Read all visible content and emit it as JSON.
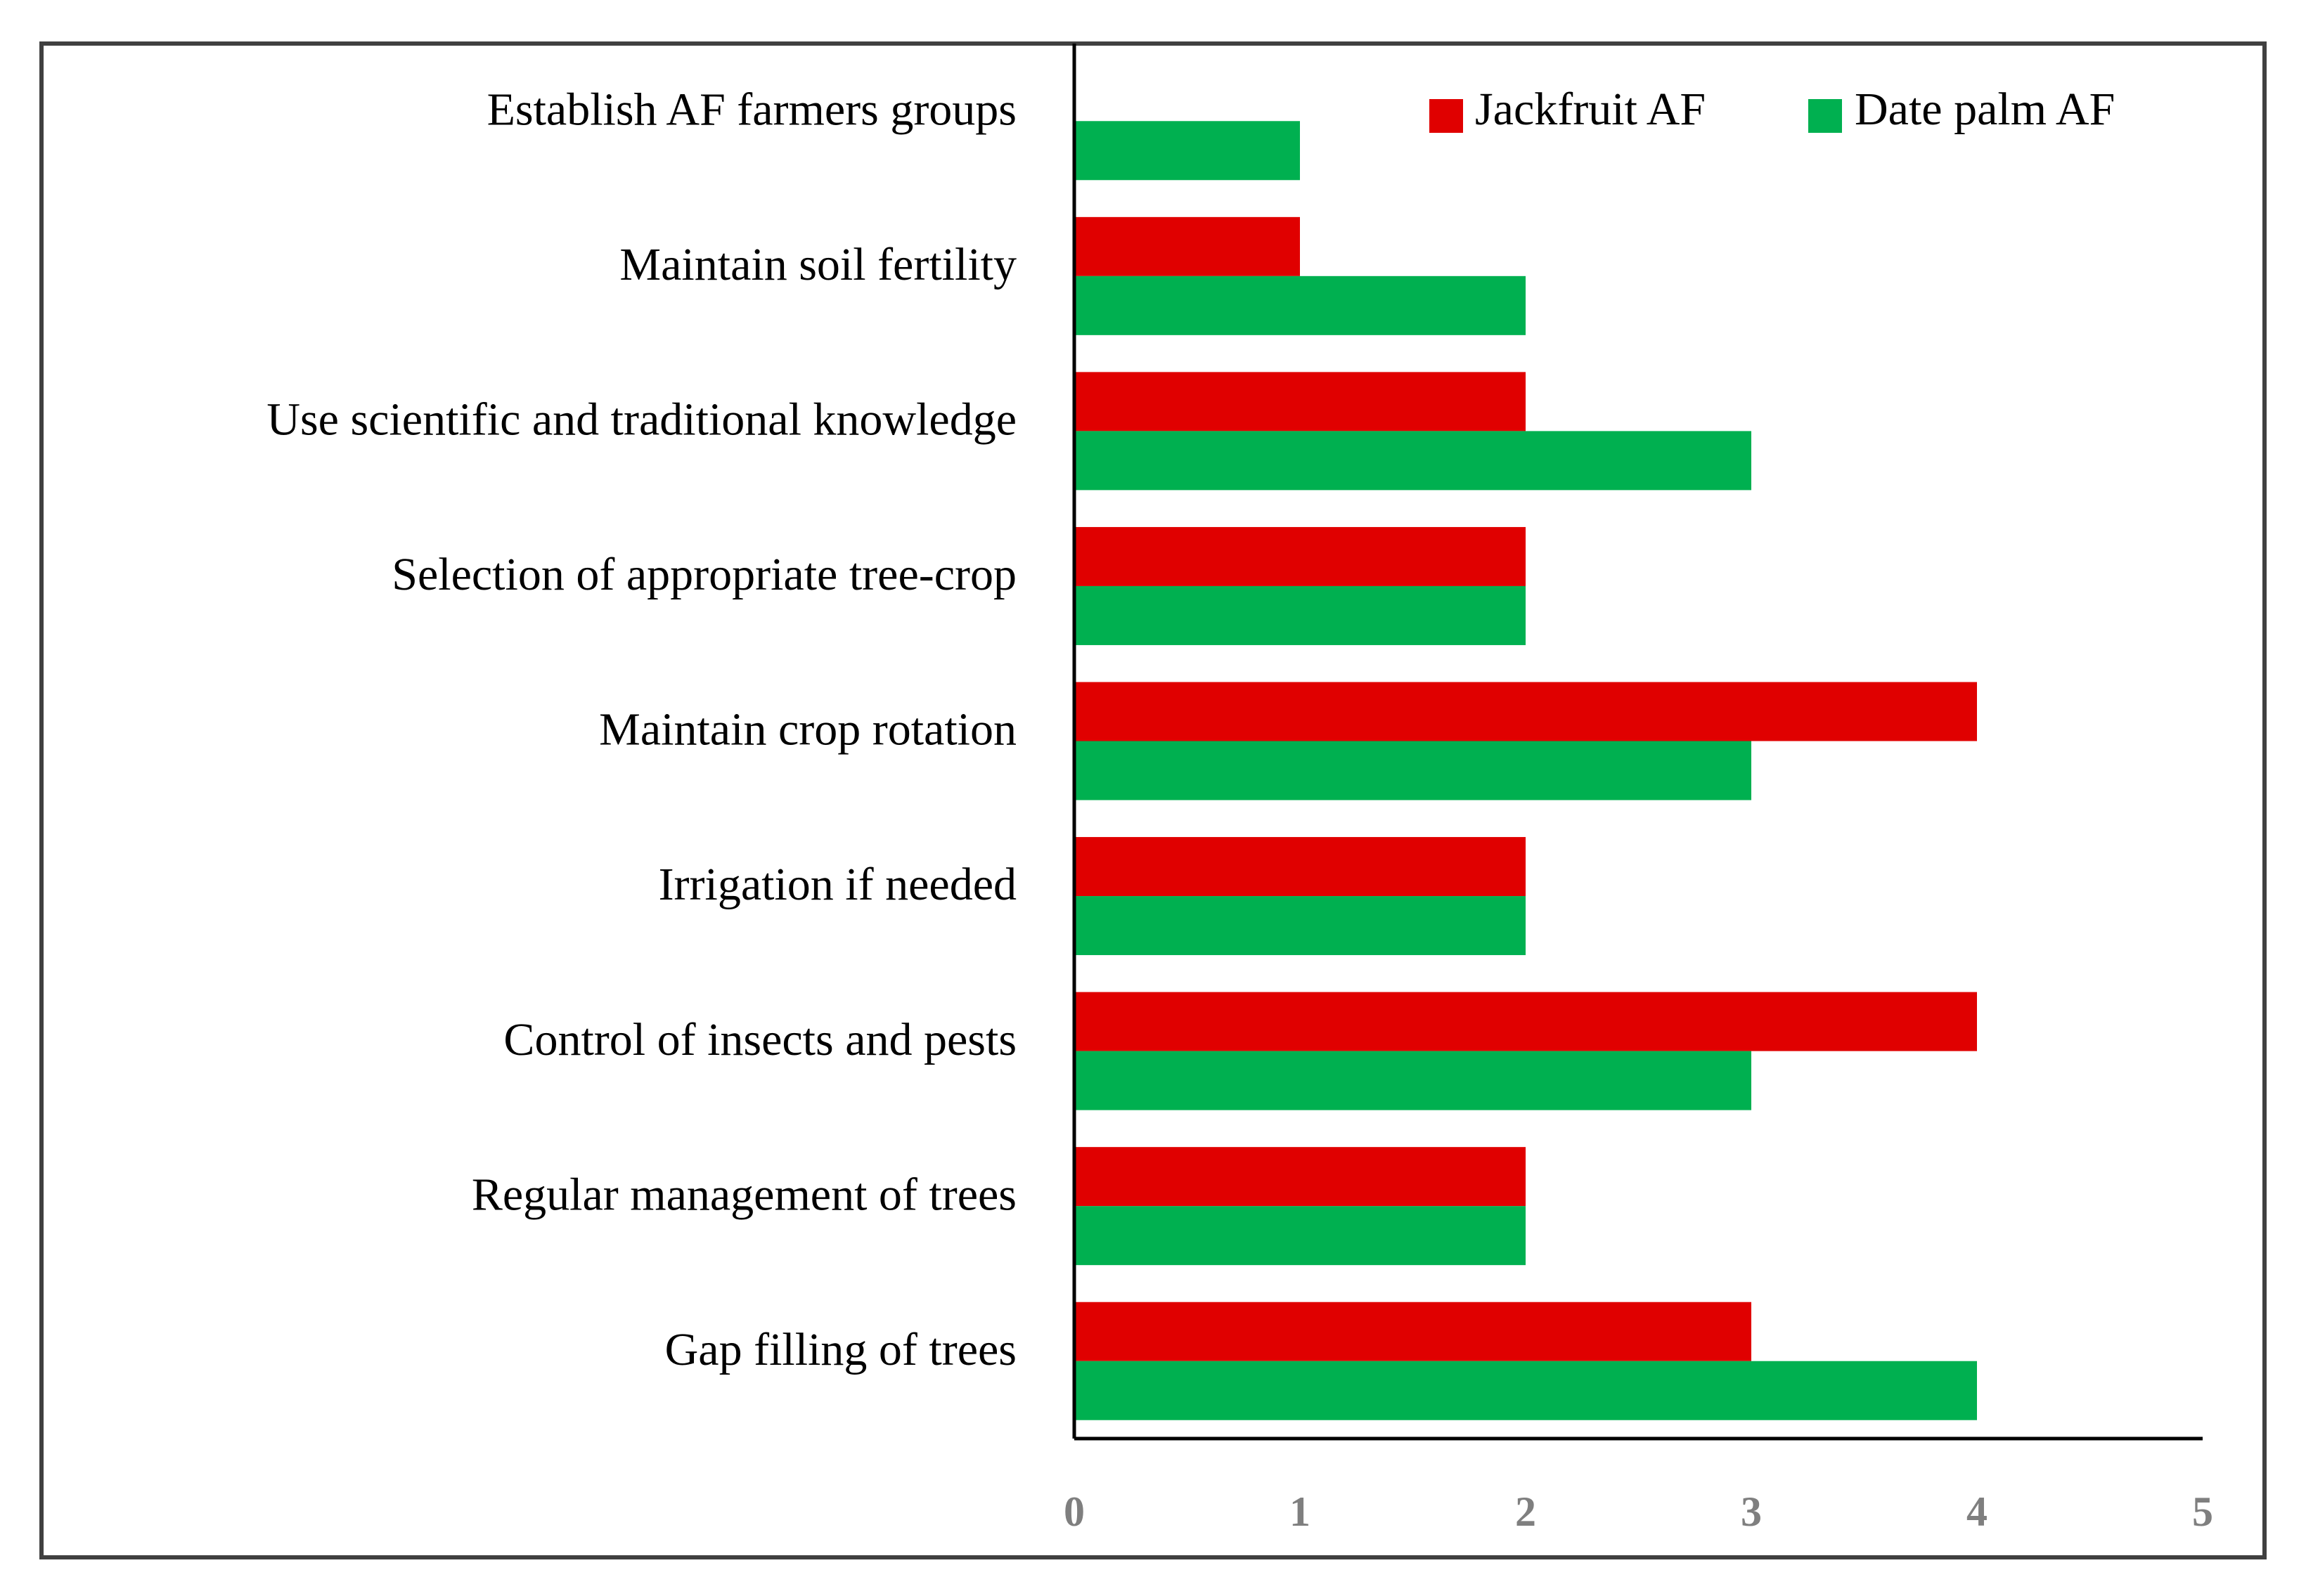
{
  "chart_data": {
    "type": "bar",
    "orientation": "horizontal",
    "title": "",
    "xlabel": "",
    "ylabel": "",
    "xlim": [
      0,
      5
    ],
    "xticks": [
      "0",
      "1",
      "2",
      "3",
      "4",
      "5"
    ],
    "grid": false,
    "legend_position": "top-right",
    "categories": [
      "Establish AF farmers groups",
      "Maintain soil fertility",
      "Use scientific and traditional knowledge",
      "Selection of appropriate tree-crop",
      "Maintain crop rotation",
      "Irrigation if needed",
      "Control of insects and pests",
      "Regular management of trees",
      "Gap filling of trees"
    ],
    "series": [
      {
        "name": "Jackfruit AF",
        "color": "#e00000",
        "values": [
          0,
          1,
          2,
          2,
          4,
          2,
          4,
          2,
          3
        ]
      },
      {
        "name": "Date palm AF",
        "color": "#00b050",
        "values": [
          1,
          2,
          3,
          2,
          3,
          2,
          3,
          2,
          4
        ]
      }
    ]
  }
}
